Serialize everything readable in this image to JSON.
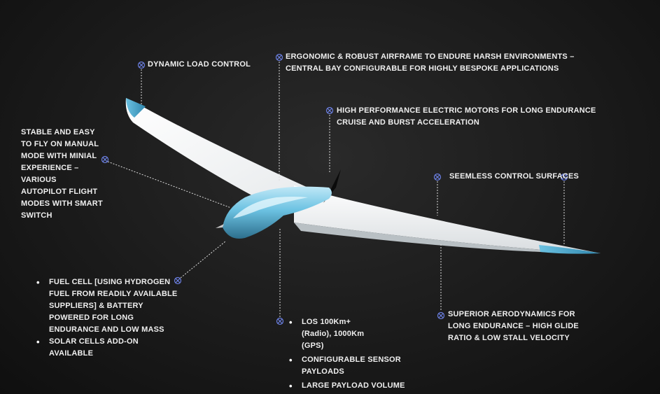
{
  "callouts": {
    "dynamic_load": "DYNAMIC LOAD CONTROL",
    "airframe": "ERGONOMIC & ROBUST AIRFRAME TO ENDURE HARSH ENVIRONMENTS – CENTRAL BAY CONFIGURABLE FOR HIGHLY BESPOKE APPLICATIONS",
    "motors": "HIGH PERFORMANCE ELECTRIC MOTORS FOR LONG ENDURANCE CRUISE AND BURST ACCELERATION",
    "control_surfaces": "SEEMLESS CONTROL SURFACES",
    "stable": "STABLE AND EASY TO FLY ON MANUAL MODE WITH MINIAL EXPERIENCE – VARIOUS AUTOPILOT FLIGHT MODES WITH SMART SWITCH",
    "aerodynamics": "SUPERIOR AERODYNAMICS FOR LONG ENDURANCE – HIGH GLIDE RATIO & LOW STALL VELOCITY"
  },
  "fuel_list": [
    "FUEL CELL [USING HYDROGEN FUEL FROM READILY AVAILABLE SUPPLIERS] & BATTERY POWERED FOR LONG ENDURANCE AND LOW MASS",
    "SOLAR CELLS ADD-ON AVAILABLE"
  ],
  "payload_list": [
    "LOS 100Km+ (Radio), 1000Km (GPS)",
    "CONFIGURABLE SENSOR PAYLOADS",
    "LARGE PAYLOAD VOLUME"
  ],
  "colors": {
    "accent_marker": "#6b7fe0",
    "wing": "#f4f6f7",
    "fuselage": "#5fb7d8"
  }
}
